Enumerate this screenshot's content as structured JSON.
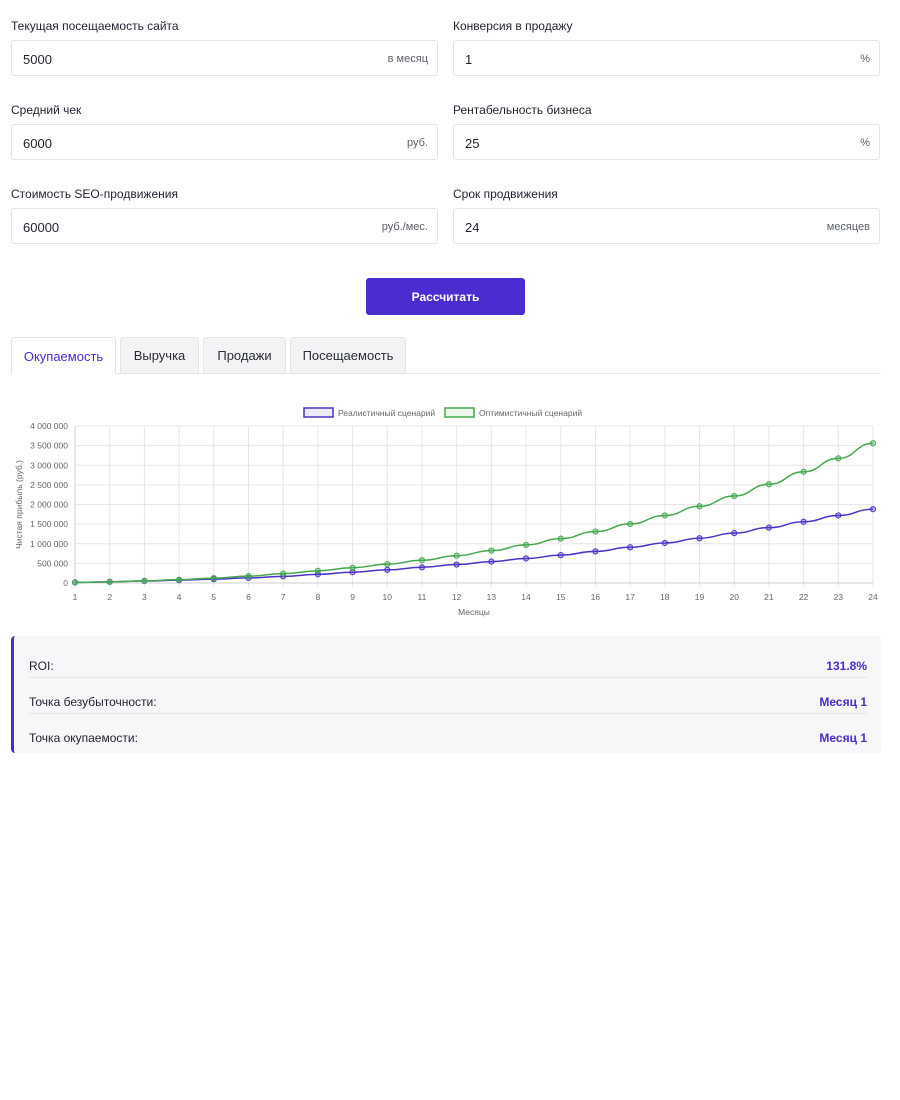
{
  "form": {
    "fields": [
      {
        "label": "Текущая посещаемость сайта",
        "value": "5000",
        "unit": "в месяц"
      },
      {
        "label": "Конверсия в продажу",
        "value": "1",
        "unit": "%"
      },
      {
        "label": "Средний чек",
        "value": "6000",
        "unit": "руб."
      },
      {
        "label": "Рентабельность бизнеса",
        "value": "25",
        "unit": "%"
      },
      {
        "label": "Стоимость SEO-продвижения",
        "value": "60000",
        "unit": "руб./мес."
      },
      {
        "label": "Срок продвижения",
        "value": "24",
        "unit": "месяцев"
      }
    ],
    "submit_label": "Рассчитать"
  },
  "tabs": [
    {
      "label": "Окупаемость",
      "active": true
    },
    {
      "label": "Выручка",
      "active": false
    },
    {
      "label": "Продажи",
      "active": false
    },
    {
      "label": "Посещаемость",
      "active": false
    }
  ],
  "chart_data": {
    "type": "line",
    "title": "",
    "xlabel": "Месяцы",
    "ylabel": "Чистая прибыль (руб.)",
    "x": [
      1,
      2,
      3,
      4,
      5,
      6,
      7,
      8,
      9,
      10,
      11,
      12,
      13,
      14,
      15,
      16,
      17,
      18,
      19,
      20,
      21,
      22,
      23,
      24
    ],
    "ylim": [
      0,
      4000000
    ],
    "yticks": [
      0,
      500000,
      1000000,
      1500000,
      2000000,
      2500000,
      3000000,
      3500000,
      4000000
    ],
    "ytick_labels": [
      "0",
      "500 000",
      "1 000 000",
      "1 500 000",
      "2 000 000",
      "2 500 000",
      "3 000 000",
      "3 500 000",
      "4 000 000"
    ],
    "grid": true,
    "legend": "top",
    "series": [
      {
        "name": "Реалистичный сценарий",
        "color": "#4a35c7",
        "values": [
          15000,
          30000,
          50000,
          72000,
          98000,
          130000,
          170000,
          220000,
          275000,
          335000,
          400000,
          470000,
          545000,
          625000,
          710000,
          805000,
          910000,
          1020000,
          1140000,
          1270000,
          1410000,
          1560000,
          1720000,
          1880000
        ]
      },
      {
        "name": "Оптимистичный сценарий",
        "color": "#45a84e",
        "values": [
          15000,
          30000,
          55000,
          85000,
          125000,
          175000,
          240000,
          310000,
          390000,
          480000,
          580000,
          695000,
          825000,
          970000,
          1130000,
          1310000,
          1505000,
          1720000,
          1955000,
          2215000,
          2515000,
          2835000,
          3175000,
          3560000
        ]
      }
    ]
  },
  "results": [
    {
      "label": "ROI:",
      "value": "131.8%"
    },
    {
      "label": "Точка безубыточности:",
      "value": "Месяц 1"
    },
    {
      "label": "Точка окупаемости:",
      "value": "Месяц 1"
    }
  ]
}
